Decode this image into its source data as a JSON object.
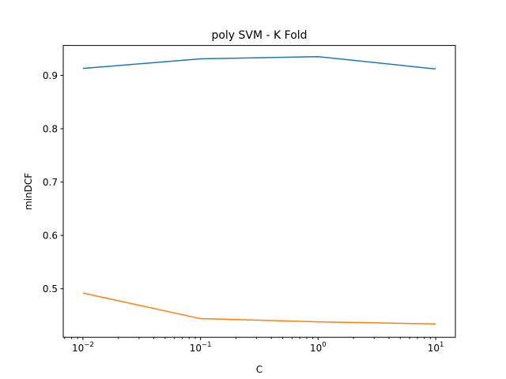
{
  "chart_data": {
    "type": "line",
    "title": "poly SVM - K Fold",
    "xlabel": "C",
    "ylabel": "minDCF",
    "xscale": "log",
    "x": [
      0.01,
      0.1,
      1,
      10
    ],
    "xlim": [
      0.0068,
      14.7
    ],
    "ylim": [
      0.409,
      0.956
    ],
    "xticks": [
      0.01,
      0.1,
      1,
      10
    ],
    "yticks": [
      0.5,
      0.6,
      0.7,
      0.8,
      0.9
    ],
    "ytick_labels": [
      "0.5",
      "0.6",
      "0.7",
      "0.8",
      "0.9"
    ],
    "grid": false,
    "legend": false,
    "series": [
      {
        "color": "#1f77b4",
        "values": [
          0.913,
          0.931,
          0.935,
          0.912
        ]
      },
      {
        "color": "#ff7f0e",
        "values": [
          0.492,
          0.444,
          0.438,
          0.434
        ]
      }
    ]
  }
}
